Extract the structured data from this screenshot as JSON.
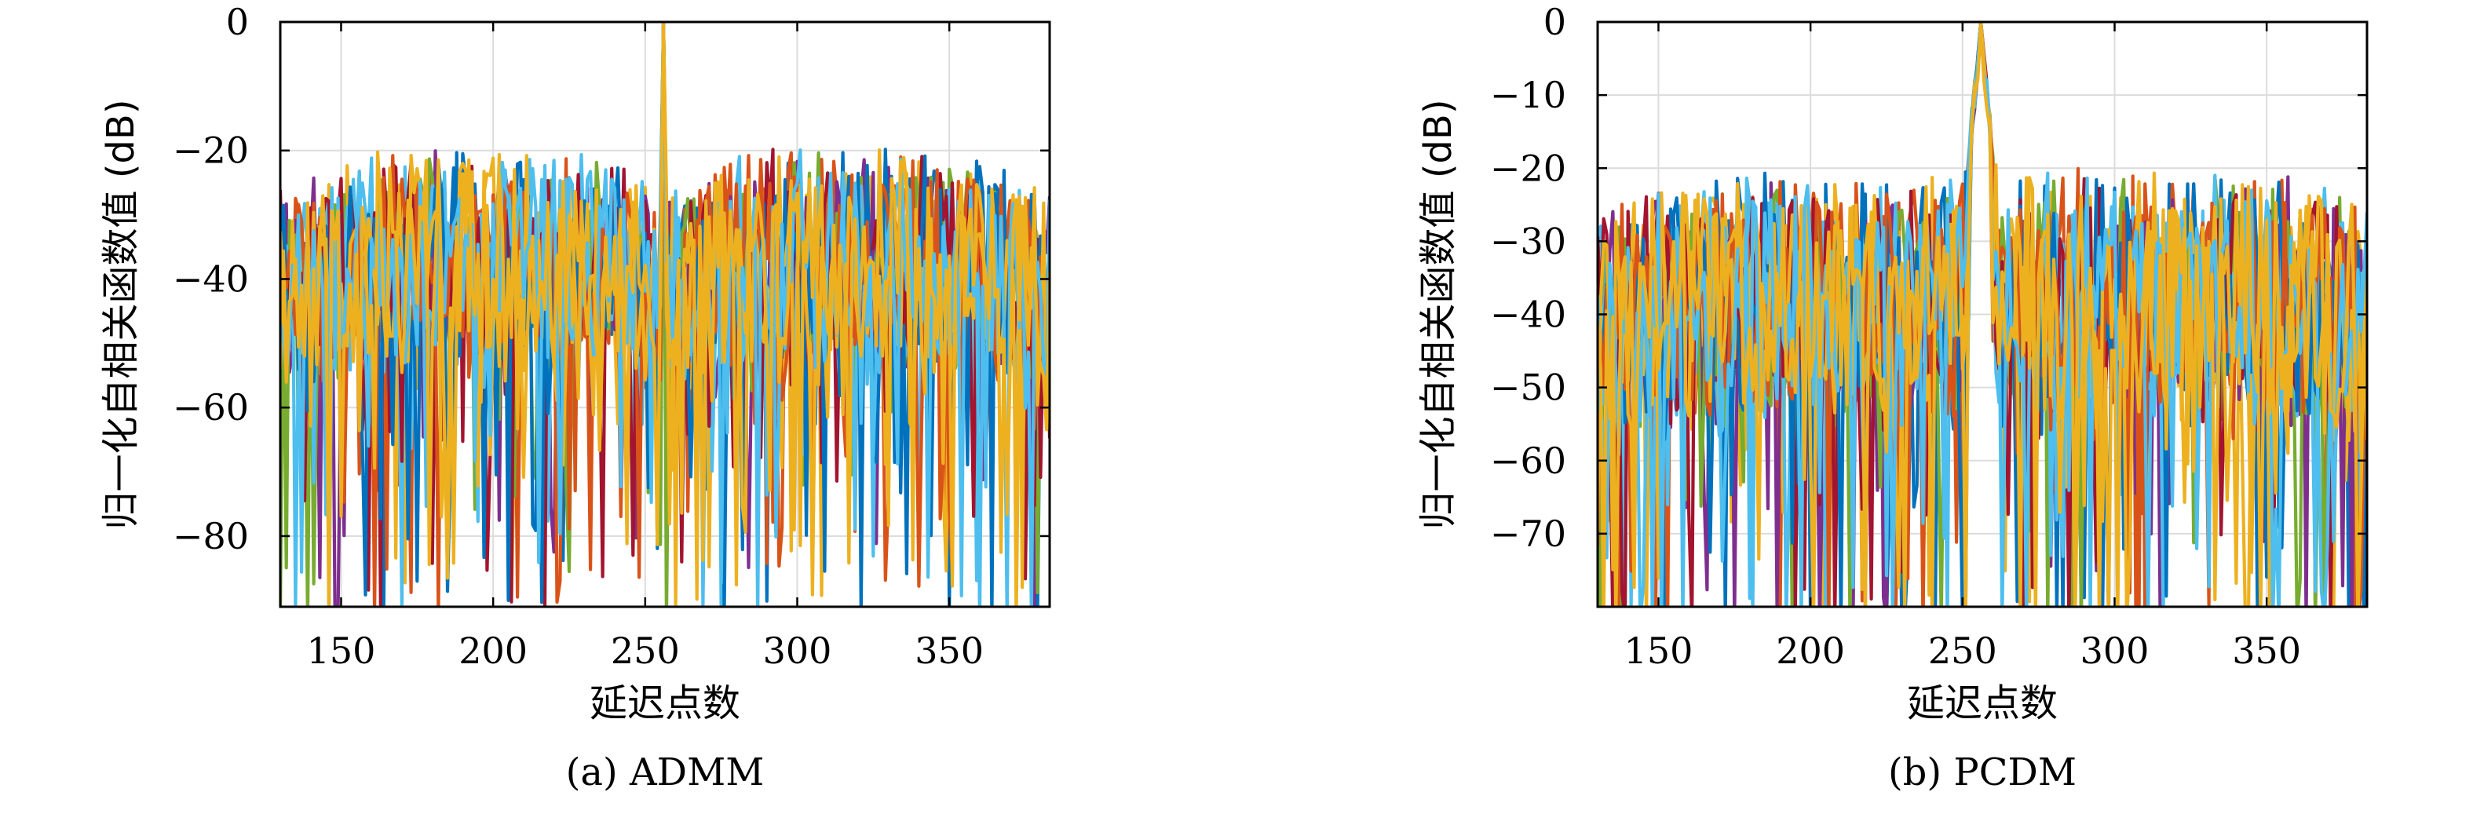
{
  "chart_data": [
    {
      "type": "line",
      "caption": "(a) ADMM",
      "xlabel": "延迟点数",
      "ylabel": "归一化自相关函数值 (dB)",
      "xlim": [
        130,
        383
      ],
      "ylim": [
        -91,
        0
      ],
      "xticks": [
        150,
        200,
        250,
        300,
        350
      ],
      "yticks": [
        0,
        -20,
        -40,
        -60,
        -80
      ],
      "ytick_labels": [
        "0",
        "−20",
        "−40",
        "−60",
        "−80"
      ],
      "grid": true,
      "peak": {
        "x": 256,
        "y": 0
      },
      "sidelobe_level_db": -18,
      "n_series": 12,
      "series_colors": [
        "#0072BD",
        "#D95319",
        "#EDB120",
        "#7E2F8E",
        "#77AC30",
        "#4DBEEE",
        "#A2142F",
        "#0072BD",
        "#D95319",
        "#EDB120",
        "#4DBEEE",
        "#EDB120"
      ]
    },
    {
      "type": "line",
      "caption": "(b) PCDM",
      "xlabel": "延迟点数",
      "ylabel": "归一化自相关函数值 (dB)",
      "xlim": [
        130,
        383
      ],
      "ylim": [
        -80,
        0
      ],
      "xticks": [
        150,
        200,
        250,
        300,
        350
      ],
      "yticks": [
        0,
        -10,
        -20,
        -30,
        -40,
        -50,
        -60,
        -70
      ],
      "ytick_labels": [
        "0",
        "−10",
        "−20",
        "−30",
        "−40",
        "−50",
        "−60",
        "−70"
      ],
      "grid": true,
      "peak": {
        "x": 256,
        "y": 0
      },
      "sidelobe_level_db": -19,
      "n_series": 12,
      "series_colors": [
        "#0072BD",
        "#D95319",
        "#EDB120",
        "#7E2F8E",
        "#77AC30",
        "#4DBEEE",
        "#A2142F",
        "#0072BD",
        "#D95319",
        "#EDB120",
        "#4DBEEE",
        "#EDB120"
      ]
    }
  ]
}
